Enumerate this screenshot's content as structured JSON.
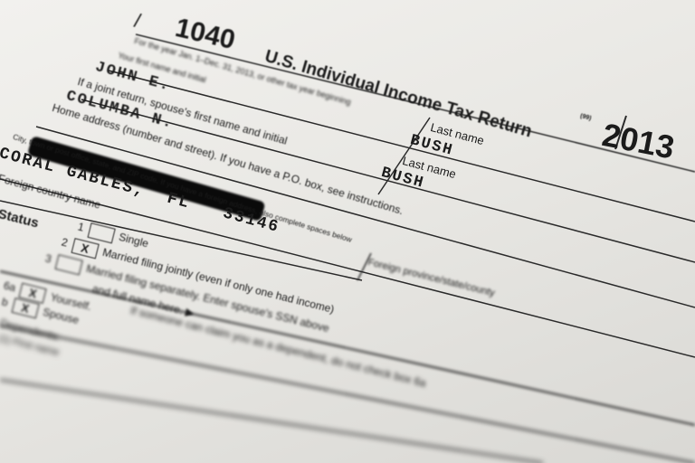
{
  "form": {
    "number": "1040",
    "title": "U.S. Individual Income Tax Return",
    "omb_code": "(99)",
    "year": "2013",
    "period_line": "For the year Jan. 1–Dec. 31, 2013, or other tax year beginning",
    "first_name_label": "Your first name and initial",
    "first_name": "JOHN E.",
    "spouse_label": "If a joint return, spouse's first name and initial",
    "spouse_first_name": "COLUMBA N.",
    "last_name_label": "Last name",
    "last_name": "BUSH",
    "spouse_last_name_label": "Last name",
    "spouse_last_name": "BUSH",
    "address_label": "Home address (number and street). If you have a P.O. box, see instructions.",
    "city_label": "City, town or post office, state, and ZIP code. If you have a foreign address, also complete spaces below",
    "city_value": "CORAL GABLES,  FL   33146",
    "foreign_country_label": "Foreign country name",
    "foreign_province_label": "Foreign province/state/county",
    "filing_status": {
      "label": "Status",
      "options": [
        {
          "num": "1",
          "label": "Single",
          "checked": false
        },
        {
          "num": "2",
          "label": "Married filing jointly (even if only one had income)",
          "checked": true
        },
        {
          "num": "3",
          "label": "Married filing separately. Enter spouse's SSN above",
          "checked": false
        }
      ],
      "line3_cont": "and full name here. ▶"
    },
    "exemptions": {
      "a_num": "6a",
      "a_label": "Yourself.",
      "a_note": "If someone can claim you as a dependent, do not check box 6a",
      "b_num": "b",
      "b_label": "Spouse",
      "c_label": "Dependents:",
      "c_sub": "(1) First name"
    }
  }
}
